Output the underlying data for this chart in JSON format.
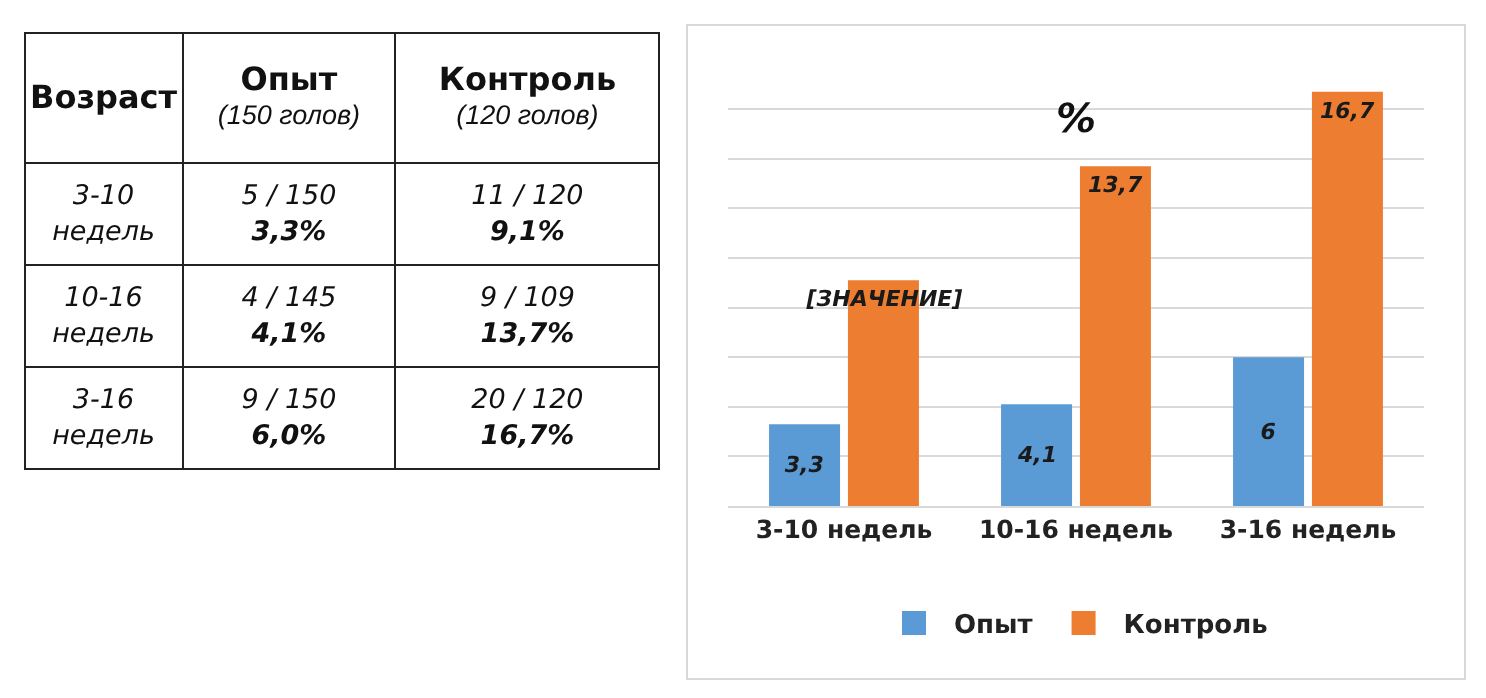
{
  "chart_data": [
    {
      "type": "other",
      "annotations": [
        "Возраст",
        "Опыт\n(150 голов)",
        "Контроль\n(120 голов)",
        "3-10\nнедель",
        "5 / 150\n3,3%",
        "11 / 120\n9,1%",
        "10-16\nнедель",
        "4 / 145\n4,1%",
        "9 / 109\n13,7%",
        "3-16\nнедель",
        "9 / 150\n6,0%",
        "20 / 120\n16,7%"
      ]
    },
    {
      "type": "bar",
      "title": "%",
      "categories": [
        "3-10 недель",
        "10-16 недель",
        "3-16 недель"
      ],
      "series": [
        {
          "name": "Опыт",
          "color": "#5b9bd5",
          "values": [
            3.3,
            4.1,
            6
          ],
          "value_labels": [
            "3,3",
            "4,1",
            "6"
          ]
        },
        {
          "name": "Контроль",
          "color": "#ed7d31",
          "values": [
            9.1,
            13.7,
            16.7
          ],
          "value_labels": [
            "[ЗНАЧЕНИЕ]",
            "13,7",
            "16,7"
          ]
        }
      ],
      "grid": "y",
      "tick_labels": "x",
      "legend": "bottom"
    }
  ]
}
